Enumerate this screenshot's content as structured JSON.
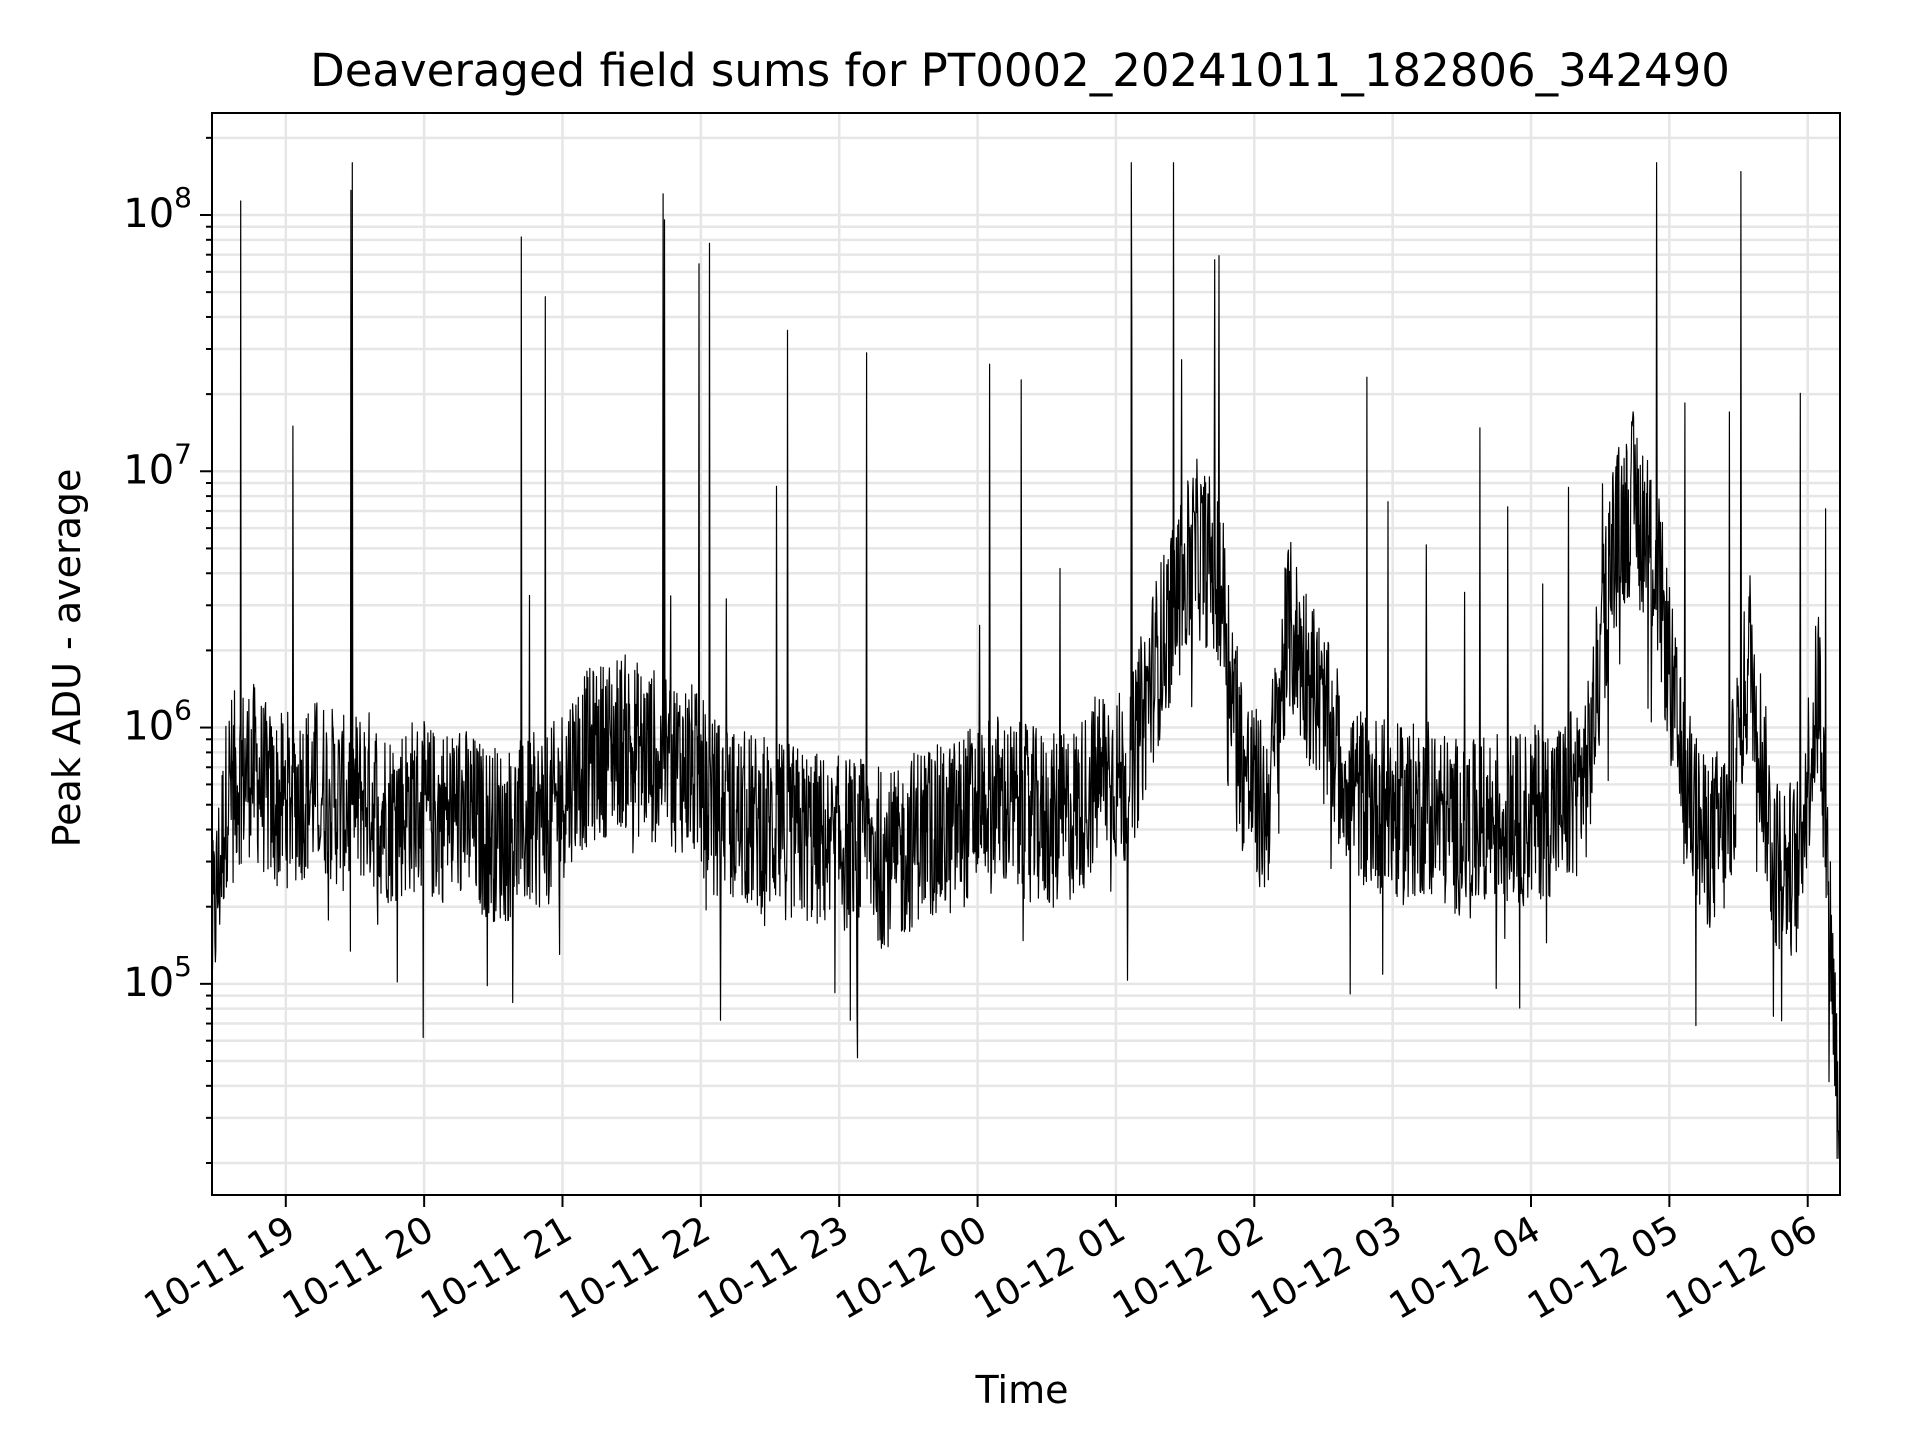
{
  "chart_data": {
    "type": "line",
    "title": "Deaveraged field sums for PT0002_20241011_182806_342490",
    "xlabel": "Time",
    "ylabel": "Peak ADU - average",
    "yscale": "log",
    "ylim": [
      15000,
      250000000
    ],
    "xlim": [
      "2024-10-11 18:28",
      "2024-10-12 06:14"
    ],
    "grid": true,
    "line_color": "#000000",
    "grid_color": "#e6e6e6",
    "x_ticks": [
      {
        "value": "2024-10-11 19:00",
        "label": "10-11 19"
      },
      {
        "value": "2024-10-11 20:00",
        "label": "10-11 20"
      },
      {
        "value": "2024-10-11 21:00",
        "label": "10-11 21"
      },
      {
        "value": "2024-10-11 22:00",
        "label": "10-11 22"
      },
      {
        "value": "2024-10-11 23:00",
        "label": "10-11 23"
      },
      {
        "value": "2024-10-12 00:00",
        "label": "10-12 00"
      },
      {
        "value": "2024-10-12 01:00",
        "label": "10-12 01"
      },
      {
        "value": "2024-10-12 02:00",
        "label": "10-12 02"
      },
      {
        "value": "2024-10-12 03:00",
        "label": "10-12 03"
      },
      {
        "value": "2024-10-12 04:00",
        "label": "10-12 04"
      },
      {
        "value": "2024-10-12 05:00",
        "label": "10-12 05"
      },
      {
        "value": "2024-10-12 06:00",
        "label": "10-12 06"
      }
    ],
    "y_ticks": [
      {
        "value": 100000,
        "base": "10",
        "exp": "5"
      },
      {
        "value": 1000000,
        "base": "10",
        "exp": "6"
      },
      {
        "value": 10000000,
        "base": "10",
        "exp": "7"
      },
      {
        "value": 100000000,
        "base": "10",
        "exp": "8"
      }
    ],
    "series": [
      {
        "x": [
          "2024-10-11 18:28",
          "2024-10-11 18:35",
          "2024-10-11 18:45",
          "2024-10-11 18:55",
          "2024-10-11 19:05",
          "2024-10-11 19:15",
          "2024-10-11 19:25",
          "2024-10-11 19:35",
          "2024-10-11 19:45",
          "2024-10-11 19:55",
          "2024-10-11 20:05",
          "2024-10-11 20:15",
          "2024-10-11 20:25",
          "2024-10-11 20:35",
          "2024-10-11 20:45",
          "2024-10-11 20:55",
          "2024-10-11 21:05",
          "2024-10-11 21:15",
          "2024-10-11 21:25",
          "2024-10-11 21:35",
          "2024-10-11 21:45",
          "2024-10-11 21:55",
          "2024-10-11 22:05",
          "2024-10-11 22:15",
          "2024-10-11 22:25",
          "2024-10-11 22:35",
          "2024-10-11 22:45",
          "2024-10-11 22:55",
          "2024-10-11 23:05",
          "2024-10-11 23:15",
          "2024-10-11 23:25",
          "2024-10-11 23:35",
          "2024-10-11 23:45",
          "2024-10-11 23:55",
          "2024-10-12 00:05",
          "2024-10-12 00:15",
          "2024-10-12 00:25",
          "2024-10-12 00:35",
          "2024-10-12 00:45",
          "2024-10-12 00:55",
          "2024-10-12 01:05",
          "2024-10-12 01:15",
          "2024-10-12 01:25",
          "2024-10-12 01:35",
          "2024-10-12 01:45",
          "2024-10-12 01:55",
          "2024-10-12 02:05",
          "2024-10-12 02:15",
          "2024-10-12 02:25",
          "2024-10-12 02:35",
          "2024-10-12 02:45",
          "2024-10-12 02:55",
          "2024-10-12 03:05",
          "2024-10-12 03:15",
          "2024-10-12 03:25",
          "2024-10-12 03:35",
          "2024-10-12 03:45",
          "2024-10-12 03:55",
          "2024-10-12 04:05",
          "2024-10-12 04:15",
          "2024-10-12 04:25",
          "2024-10-12 04:35",
          "2024-10-12 04:45",
          "2024-10-12 04:55",
          "2024-10-12 05:05",
          "2024-10-12 05:15",
          "2024-10-12 05:25",
          "2024-10-12 05:35",
          "2024-10-12 05:45",
          "2024-10-12 05:55",
          "2024-10-12 06:05",
          "2024-10-12 06:14"
        ],
        "y": [
          150000,
          600000,
          700000,
          500000,
          550000,
          600000,
          500000,
          550000,
          450000,
          500000,
          450000,
          480000,
          400000,
          380000,
          420000,
          450000,
          700000,
          800000,
          900000,
          800000,
          750000,
          700000,
          500000,
          450000,
          420000,
          400000,
          380000,
          350000,
          350000,
          330000,
          300000,
          400000,
          380000,
          450000,
          550000,
          480000,
          450000,
          420000,
          500000,
          700000,
          600000,
          1500000,
          3000000,
          5000000,
          4000000,
          700000,
          450000,
          2500000,
          1500000,
          800000,
          550000,
          500000,
          450000,
          500000,
          420000,
          400000,
          450000,
          430000,
          480000,
          500000,
          700000,
          5000000,
          8000000,
          4000000,
          700000,
          350000,
          400000,
          2000000,
          300000,
          280000,
          1500000,
          25000
        ]
      }
    ]
  }
}
